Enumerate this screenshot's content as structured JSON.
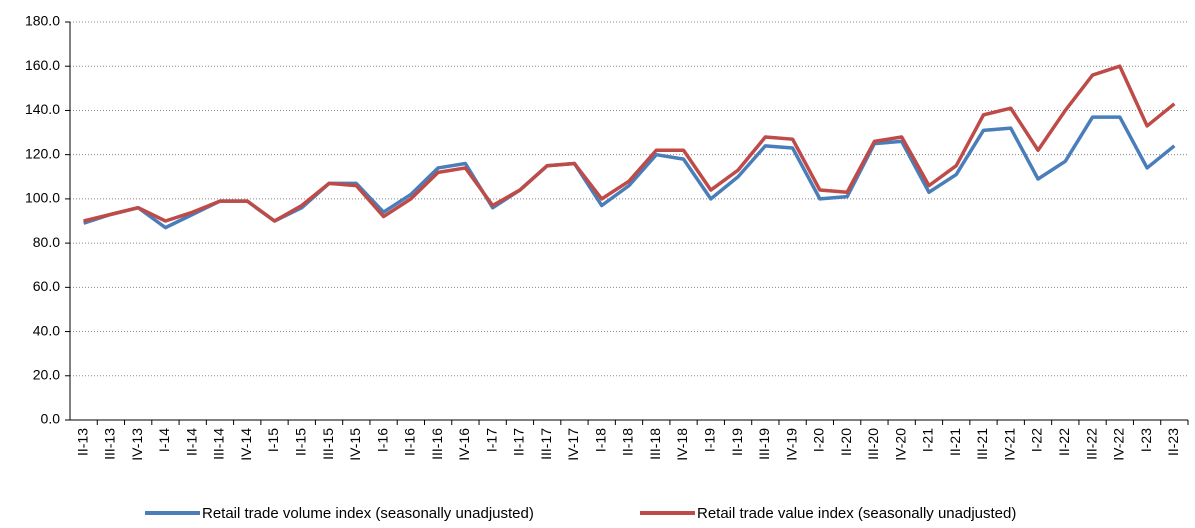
{
  "chart_data": {
    "type": "line",
    "categories": [
      "II-13",
      "III-13",
      "IV-13",
      "I-14",
      "II-14",
      "III-14",
      "IV-14",
      "I-15",
      "II-15",
      "III-15",
      "IV-15",
      "I-16",
      "II-16",
      "III-16",
      "IV-16",
      "I-17",
      "II-17",
      "III-17",
      "IV-17",
      "I-18",
      "II-18",
      "III-18",
      "IV-18",
      "I-19",
      "II-19",
      "III-19",
      "IV-19",
      "I-20",
      "II-20",
      "III-20",
      "IV-20",
      "I-21",
      "II-21",
      "III-21",
      "IV-21",
      "I-22",
      "II-22",
      "III-22",
      "IV-22",
      "I-23",
      "II-23"
    ],
    "series": [
      {
        "name": "Retail trade volume index (seasonally unadjusted)",
        "color": "#4a7ebb",
        "values": [
          89,
          93,
          96,
          87,
          93,
          99,
          99,
          90,
          96,
          107,
          107,
          94,
          102,
          114,
          116,
          96,
          104,
          115,
          116,
          97,
          106,
          120,
          118,
          100,
          110,
          124,
          123,
          100,
          101,
          125,
          126,
          103,
          111,
          131,
          132,
          109,
          117,
          137,
          137,
          114,
          124
        ]
      },
      {
        "name": "Retail trade value index (seasonally unadjusted)",
        "color": "#be4b48",
        "values": [
          90,
          93,
          96,
          90,
          94,
          99,
          99,
          90,
          97,
          107,
          106,
          92,
          100,
          112,
          114,
          97,
          104,
          115,
          116,
          100,
          108,
          122,
          122,
          104,
          113,
          128,
          127,
          104,
          103,
          126,
          128,
          106,
          115,
          138,
          141,
          122,
          140,
          156,
          160,
          133,
          143
        ]
      }
    ],
    "ylim": [
      0,
      180
    ],
    "yticks": [
      {
        "value": 0,
        "label": "0.0"
      },
      {
        "value": 20,
        "label": "20.0"
      },
      {
        "value": 40,
        "label": "40.0"
      },
      {
        "value": 60,
        "label": "60.0"
      },
      {
        "value": 80,
        "label": "80.0"
      },
      {
        "value": 100,
        "label": "100.0"
      },
      {
        "value": 120,
        "label": "120.0"
      },
      {
        "value": 140,
        "label": "140.0"
      },
      {
        "value": 160,
        "label": "160.0"
      },
      {
        "value": 180,
        "label": "180.0"
      }
    ],
    "grid": true
  }
}
